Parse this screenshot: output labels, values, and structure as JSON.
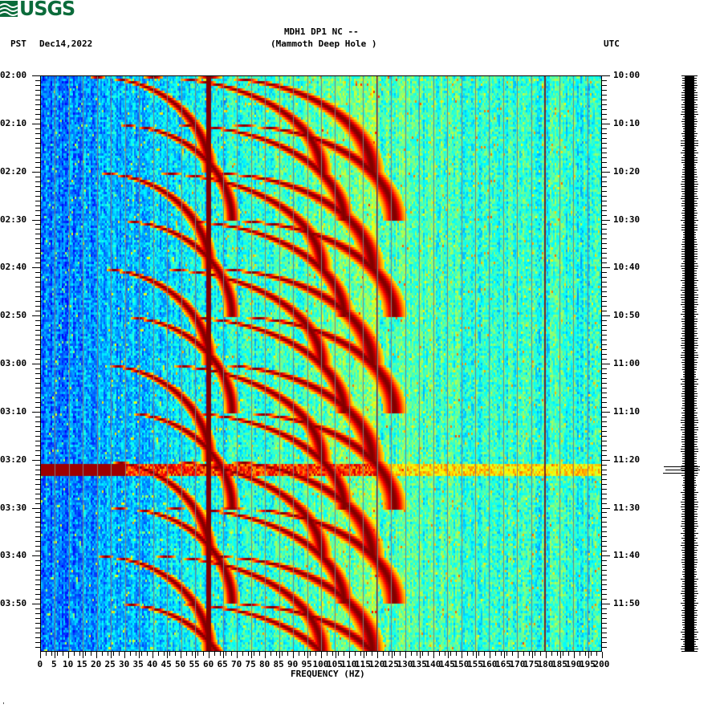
{
  "header": {
    "logo_text": "USGS",
    "station_line": "MDH1 DP1 NC --",
    "station_name": "(Mammoth Deep Hole )",
    "left_zone": "PST",
    "date": "Dec14,2022",
    "right_zone": "UTC"
  },
  "footer_mark": "'",
  "colors": {
    "logo": "#0b6b3a",
    "grid": "#7f7f7f",
    "line_60hz": "#800000"
  },
  "chart_data": {
    "type": "heatmap",
    "title": "MDH1 DP1 NC -- (Mammoth Deep Hole )",
    "subtitle": "PST Dec14,2022 / UTC",
    "xlabel": "FREQUENCY (HZ)",
    "ylabel_left": "PST",
    "ylabel_right": "UTC",
    "xlim": [
      0,
      200
    ],
    "x_ticks": [
      0,
      5,
      10,
      15,
      20,
      25,
      30,
      35,
      40,
      45,
      50,
      55,
      60,
      65,
      70,
      75,
      80,
      85,
      90,
      95,
      100,
      105,
      110,
      115,
      120,
      125,
      130,
      135,
      140,
      145,
      150,
      155,
      160,
      165,
      170,
      175,
      180,
      185,
      190,
      195,
      200
    ],
    "y_ticks_left": [
      "02:00",
      "02:10",
      "02:20",
      "02:30",
      "02:40",
      "02:50",
      "03:00",
      "03:10",
      "03:20",
      "03:30",
      "03:40",
      "03:50"
    ],
    "y_ticks_right": [
      "10:00",
      "10:10",
      "10:20",
      "10:30",
      "10:40",
      "10:50",
      "11:00",
      "11:10",
      "11:20",
      "11:30",
      "11:40",
      "11:50"
    ],
    "time_range_minutes": 120,
    "grid": true,
    "grid_every_hz": 5,
    "colormap": "jet",
    "features": {
      "persistent_lines_hz": [
        60,
        120,
        180
      ],
      "broadband_event_minute": 82,
      "low_freq_event_range_hz": [
        0,
        35
      ],
      "sweep_cycle_minutes": 20,
      "sweep_starts_minutes": [
        0,
        10,
        20,
        30,
        40,
        50,
        60,
        70,
        80,
        90,
        100,
        110
      ],
      "sweep_harmonics_hz": [
        [
          20,
          60
        ],
        [
          40,
          100
        ],
        [
          60,
          118
        ]
      ]
    },
    "seismogram": {
      "event_minute": 82,
      "event_amplitude": "large"
    }
  }
}
